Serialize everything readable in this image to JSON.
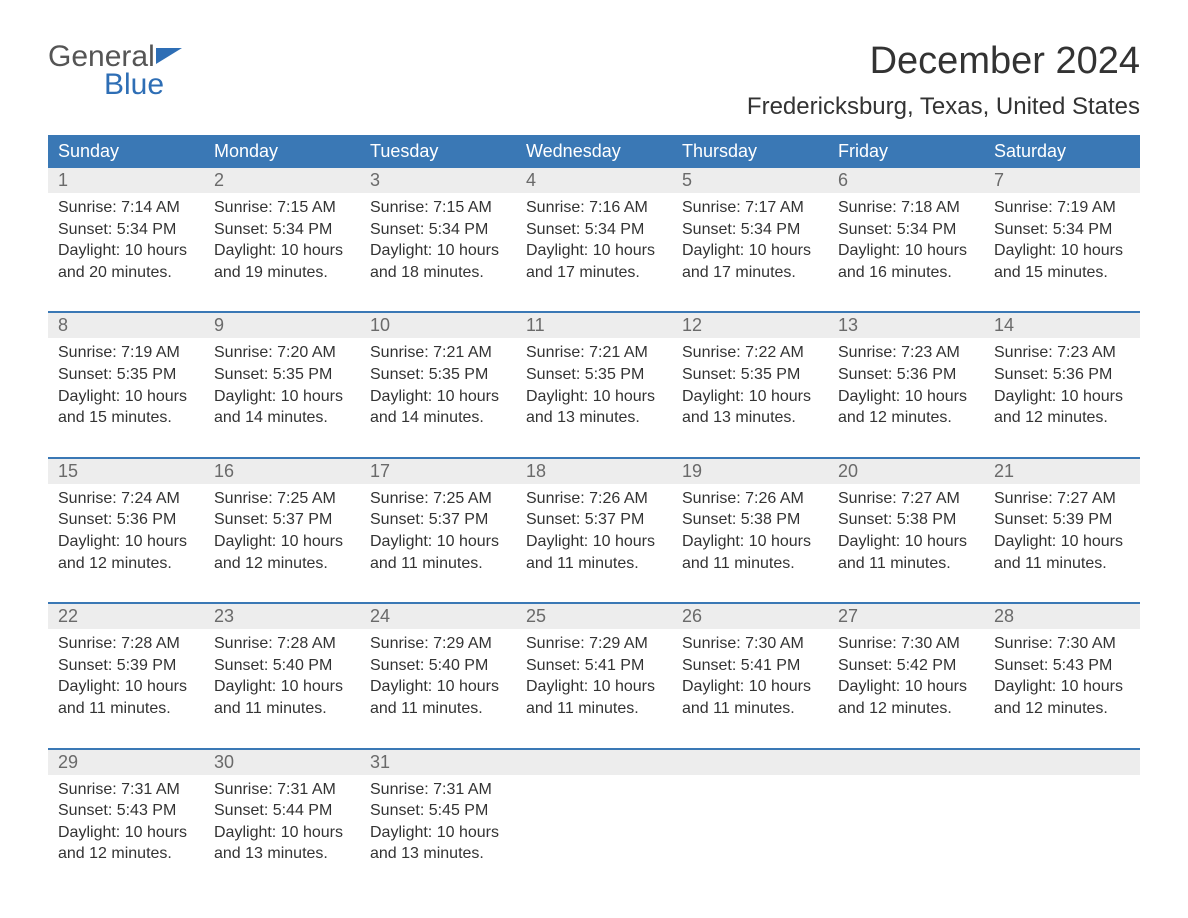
{
  "logo": {
    "line1": "General",
    "line2": "Blue"
  },
  "title": "December 2024",
  "location": "Fredericksburg, Texas, United States",
  "colors": {
    "header_bg": "#3a78b5",
    "header_text": "#ffffff",
    "daynum_bg": "#ededed",
    "daynum_text": "#6a6a6a",
    "rule": "#3a78b5",
    "body_text": "#333333",
    "logo_gray": "#555555",
    "logo_blue": "#2e6eb5"
  },
  "day_headers": [
    "Sunday",
    "Monday",
    "Tuesday",
    "Wednesday",
    "Thursday",
    "Friday",
    "Saturday"
  ],
  "weeks": [
    [
      {
        "n": "1",
        "sunrise": "Sunrise: 7:14 AM",
        "sunset": "Sunset: 5:34 PM",
        "d1": "Daylight: 10 hours",
        "d2": "and 20 minutes."
      },
      {
        "n": "2",
        "sunrise": "Sunrise: 7:15 AM",
        "sunset": "Sunset: 5:34 PM",
        "d1": "Daylight: 10 hours",
        "d2": "and 19 minutes."
      },
      {
        "n": "3",
        "sunrise": "Sunrise: 7:15 AM",
        "sunset": "Sunset: 5:34 PM",
        "d1": "Daylight: 10 hours",
        "d2": "and 18 minutes."
      },
      {
        "n": "4",
        "sunrise": "Sunrise: 7:16 AM",
        "sunset": "Sunset: 5:34 PM",
        "d1": "Daylight: 10 hours",
        "d2": "and 17 minutes."
      },
      {
        "n": "5",
        "sunrise": "Sunrise: 7:17 AM",
        "sunset": "Sunset: 5:34 PM",
        "d1": "Daylight: 10 hours",
        "d2": "and 17 minutes."
      },
      {
        "n": "6",
        "sunrise": "Sunrise: 7:18 AM",
        "sunset": "Sunset: 5:34 PM",
        "d1": "Daylight: 10 hours",
        "d2": "and 16 minutes."
      },
      {
        "n": "7",
        "sunrise": "Sunrise: 7:19 AM",
        "sunset": "Sunset: 5:34 PM",
        "d1": "Daylight: 10 hours",
        "d2": "and 15 minutes."
      }
    ],
    [
      {
        "n": "8",
        "sunrise": "Sunrise: 7:19 AM",
        "sunset": "Sunset: 5:35 PM",
        "d1": "Daylight: 10 hours",
        "d2": "and 15 minutes."
      },
      {
        "n": "9",
        "sunrise": "Sunrise: 7:20 AM",
        "sunset": "Sunset: 5:35 PM",
        "d1": "Daylight: 10 hours",
        "d2": "and 14 minutes."
      },
      {
        "n": "10",
        "sunrise": "Sunrise: 7:21 AM",
        "sunset": "Sunset: 5:35 PM",
        "d1": "Daylight: 10 hours",
        "d2": "and 14 minutes."
      },
      {
        "n": "11",
        "sunrise": "Sunrise: 7:21 AM",
        "sunset": "Sunset: 5:35 PM",
        "d1": "Daylight: 10 hours",
        "d2": "and 13 minutes."
      },
      {
        "n": "12",
        "sunrise": "Sunrise: 7:22 AM",
        "sunset": "Sunset: 5:35 PM",
        "d1": "Daylight: 10 hours",
        "d2": "and 13 minutes."
      },
      {
        "n": "13",
        "sunrise": "Sunrise: 7:23 AM",
        "sunset": "Sunset: 5:36 PM",
        "d1": "Daylight: 10 hours",
        "d2": "and 12 minutes."
      },
      {
        "n": "14",
        "sunrise": "Sunrise: 7:23 AM",
        "sunset": "Sunset: 5:36 PM",
        "d1": "Daylight: 10 hours",
        "d2": "and 12 minutes."
      }
    ],
    [
      {
        "n": "15",
        "sunrise": "Sunrise: 7:24 AM",
        "sunset": "Sunset: 5:36 PM",
        "d1": "Daylight: 10 hours",
        "d2": "and 12 minutes."
      },
      {
        "n": "16",
        "sunrise": "Sunrise: 7:25 AM",
        "sunset": "Sunset: 5:37 PM",
        "d1": "Daylight: 10 hours",
        "d2": "and 12 minutes."
      },
      {
        "n": "17",
        "sunrise": "Sunrise: 7:25 AM",
        "sunset": "Sunset: 5:37 PM",
        "d1": "Daylight: 10 hours",
        "d2": "and 11 minutes."
      },
      {
        "n": "18",
        "sunrise": "Sunrise: 7:26 AM",
        "sunset": "Sunset: 5:37 PM",
        "d1": "Daylight: 10 hours",
        "d2": "and 11 minutes."
      },
      {
        "n": "19",
        "sunrise": "Sunrise: 7:26 AM",
        "sunset": "Sunset: 5:38 PM",
        "d1": "Daylight: 10 hours",
        "d2": "and 11 minutes."
      },
      {
        "n": "20",
        "sunrise": "Sunrise: 7:27 AM",
        "sunset": "Sunset: 5:38 PM",
        "d1": "Daylight: 10 hours",
        "d2": "and 11 minutes."
      },
      {
        "n": "21",
        "sunrise": "Sunrise: 7:27 AM",
        "sunset": "Sunset: 5:39 PM",
        "d1": "Daylight: 10 hours",
        "d2": "and 11 minutes."
      }
    ],
    [
      {
        "n": "22",
        "sunrise": "Sunrise: 7:28 AM",
        "sunset": "Sunset: 5:39 PM",
        "d1": "Daylight: 10 hours",
        "d2": "and 11 minutes."
      },
      {
        "n": "23",
        "sunrise": "Sunrise: 7:28 AM",
        "sunset": "Sunset: 5:40 PM",
        "d1": "Daylight: 10 hours",
        "d2": "and 11 minutes."
      },
      {
        "n": "24",
        "sunrise": "Sunrise: 7:29 AM",
        "sunset": "Sunset: 5:40 PM",
        "d1": "Daylight: 10 hours",
        "d2": "and 11 minutes."
      },
      {
        "n": "25",
        "sunrise": "Sunrise: 7:29 AM",
        "sunset": "Sunset: 5:41 PM",
        "d1": "Daylight: 10 hours",
        "d2": "and 11 minutes."
      },
      {
        "n": "26",
        "sunrise": "Sunrise: 7:30 AM",
        "sunset": "Sunset: 5:41 PM",
        "d1": "Daylight: 10 hours",
        "d2": "and 11 minutes."
      },
      {
        "n": "27",
        "sunrise": "Sunrise: 7:30 AM",
        "sunset": "Sunset: 5:42 PM",
        "d1": "Daylight: 10 hours",
        "d2": "and 12 minutes."
      },
      {
        "n": "28",
        "sunrise": "Sunrise: 7:30 AM",
        "sunset": "Sunset: 5:43 PM",
        "d1": "Daylight: 10 hours",
        "d2": "and 12 minutes."
      }
    ],
    [
      {
        "n": "29",
        "sunrise": "Sunrise: 7:31 AM",
        "sunset": "Sunset: 5:43 PM",
        "d1": "Daylight: 10 hours",
        "d2": "and 12 minutes."
      },
      {
        "n": "30",
        "sunrise": "Sunrise: 7:31 AM",
        "sunset": "Sunset: 5:44 PM",
        "d1": "Daylight: 10 hours",
        "d2": "and 13 minutes."
      },
      {
        "n": "31",
        "sunrise": "Sunrise: 7:31 AM",
        "sunset": "Sunset: 5:45 PM",
        "d1": "Daylight: 10 hours",
        "d2": "and 13 minutes."
      },
      null,
      null,
      null,
      null
    ]
  ]
}
